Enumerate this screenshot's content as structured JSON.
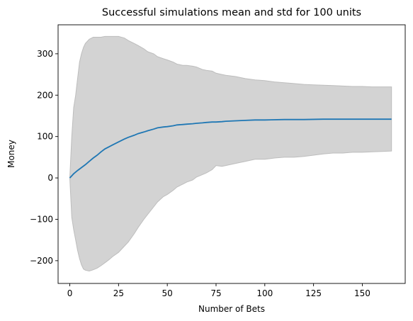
{
  "chart_data": {
    "type": "area",
    "title": "Successful simulations mean and std for 100 units",
    "xlabel": "Number of Bets",
    "ylabel": "Money",
    "xlim": [
      -6,
      172
    ],
    "ylim": [
      -255,
      370
    ],
    "xticks": [
      0,
      25,
      50,
      75,
      100,
      125,
      150
    ],
    "yticks": [
      -200,
      -100,
      0,
      100,
      200,
      300
    ],
    "tick_labels": {
      "x": [
        "0",
        "25",
        "50",
        "75",
        "100",
        "125",
        "150"
      ],
      "y": [
        "−200",
        "−100",
        "0",
        "100",
        "200",
        "300"
      ]
    },
    "grid": false,
    "colors": {
      "mean": "#1f77b4",
      "band": "#d3d3d3",
      "band_edge": "#bdbdbd"
    },
    "series": [
      {
        "kind": "band",
        "x": [
          0,
          1,
          2,
          3,
          4,
          5,
          6,
          7,
          8,
          10,
          12,
          14,
          16,
          18,
          20,
          22,
          25,
          28,
          30,
          33,
          35,
          38,
          40,
          43,
          45,
          48,
          50,
          53,
          55,
          58,
          60,
          63,
          65,
          68,
          70,
          73,
          75,
          78,
          80,
          85,
          90,
          95,
          100,
          105,
          110,
          115,
          120,
          125,
          130,
          135,
          140,
          145,
          150,
          155,
          160,
          165
        ],
        "upper": [
          0,
          100,
          170,
          200,
          240,
          280,
          300,
          315,
          325,
          335,
          340,
          340,
          340,
          342,
          342,
          342,
          342,
          338,
          332,
          325,
          320,
          312,
          305,
          300,
          293,
          288,
          285,
          280,
          275,
          272,
          272,
          270,
          268,
          262,
          260,
          258,
          253,
          250,
          248,
          245,
          240,
          237,
          235,
          232,
          230,
          228,
          226,
          225,
          224,
          223,
          222,
          221,
          221,
          220,
          220,
          220
        ],
        "lower": [
          0,
          -95,
          -125,
          -150,
          -175,
          -195,
          -210,
          -220,
          -223,
          -225,
          -222,
          -218,
          -212,
          -205,
          -198,
          -190,
          -180,
          -165,
          -155,
          -135,
          -120,
          -100,
          -88,
          -70,
          -58,
          -45,
          -40,
          -30,
          -22,
          -15,
          -10,
          -5,
          2,
          8,
          12,
          20,
          30,
          28,
          30,
          35,
          40,
          45,
          45,
          48,
          50,
          50,
          52,
          55,
          58,
          60,
          60,
          62,
          62,
          63,
          64,
          65
        ]
      },
      {
        "kind": "line",
        "x": [
          0,
          2,
          4,
          6,
          8,
          10,
          12,
          14,
          16,
          18,
          20,
          22,
          25,
          28,
          30,
          33,
          35,
          38,
          40,
          43,
          45,
          48,
          50,
          53,
          55,
          58,
          60,
          63,
          65,
          68,
          70,
          73,
          75,
          78,
          80,
          85,
          90,
          95,
          100,
          110,
          120,
          130,
          140,
          150,
          160,
          165
        ],
        "values": [
          0,
          10,
          18,
          25,
          32,
          40,
          48,
          55,
          63,
          70,
          75,
          80,
          87,
          94,
          98,
          103,
          107,
          111,
          114,
          118,
          121,
          123,
          124,
          126,
          128,
          129,
          130,
          131,
          132,
          133,
          134,
          135,
          135,
          136,
          137,
          138,
          139,
          140,
          140,
          141,
          141,
          142,
          142,
          142,
          142,
          142
        ]
      }
    ]
  }
}
